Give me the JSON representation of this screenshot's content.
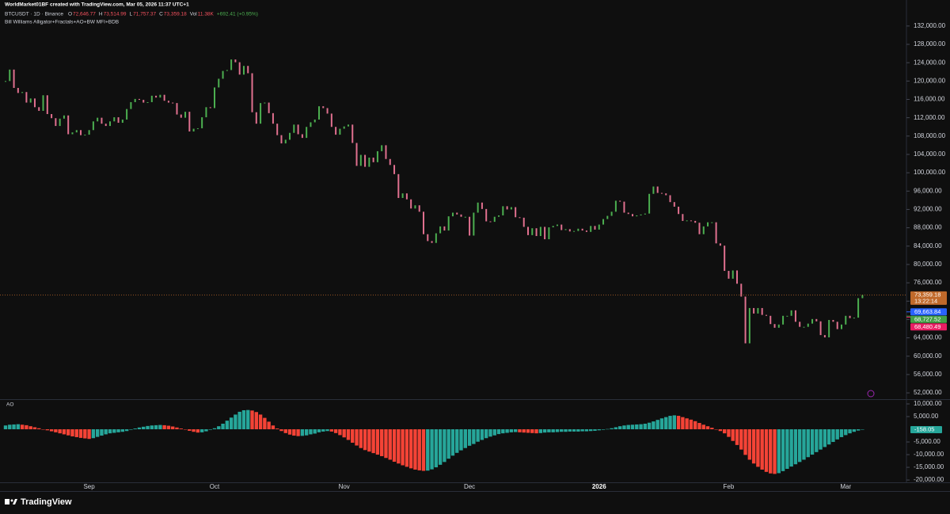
{
  "header": {
    "watermark": "WorldMarket01BF created with TradingView.com, Mar 05, 2026 11:37 UTC+1",
    "symbol": "BTCUSDT · 1D · Binance",
    "legend": [
      {
        "key": "O",
        "text": "72,646.77"
      },
      {
        "key": "H",
        "text": "73,514.99"
      },
      {
        "key": "L",
        "text": "71,757.37"
      },
      {
        "key": "C",
        "text": "73,359.18"
      },
      {
        "key": "Vol",
        "text": "11.38K"
      }
    ],
    "change": "+692.41 (+0.95%)",
    "study": "Bill Williams Alligator+Fractals+AO+BW MFI+BDB"
  },
  "footer": {
    "brand": "TradingView"
  },
  "chart_data": {
    "type": "price-bars",
    "categories": [
      null,
      null,
      null,
      null,
      null,
      null,
      null,
      null,
      null,
      null,
      null,
      null,
      null,
      null,
      null,
      null,
      null,
      null,
      null,
      null,
      "Sep",
      null,
      null,
      null,
      null,
      null,
      null,
      null,
      null,
      null,
      null,
      null,
      null,
      null,
      null,
      null,
      null,
      null,
      null,
      null,
      null,
      null,
      null,
      null,
      null,
      null,
      null,
      null,
      null,
      null,
      "Oct",
      null,
      null,
      null,
      null,
      null,
      null,
      null,
      null,
      null,
      null,
      null,
      null,
      null,
      null,
      null,
      null,
      null,
      null,
      null,
      null,
      null,
      null,
      null,
      null,
      null,
      null,
      null,
      null,
      null,
      null,
      "Nov",
      null,
      null,
      null,
      null,
      null,
      null,
      null,
      null,
      null,
      null,
      null,
      null,
      null,
      null,
      null,
      null,
      null,
      null,
      null,
      null,
      null,
      null,
      null,
      null,
      null,
      null,
      null,
      null,
      null,
      "Dec",
      null,
      null,
      null,
      null,
      null,
      null,
      null,
      null,
      null,
      null,
      null,
      null,
      null,
      null,
      null,
      null,
      null,
      null,
      null,
      null,
      null,
      null,
      null,
      null,
      null,
      null,
      null,
      null,
      null,
      null,
      "2026",
      null,
      null,
      null,
      null,
      null,
      null,
      null,
      null,
      null,
      null,
      null,
      null,
      null,
      null,
      null,
      null,
      null,
      null,
      null,
      null,
      null,
      null,
      null,
      null,
      null,
      null,
      null,
      null,
      null,
      null,
      "Feb",
      null,
      null,
      null,
      null,
      null,
      null,
      null,
      null,
      null,
      null,
      null,
      null,
      null,
      null,
      null,
      null,
      null,
      null,
      null,
      null,
      null,
      null,
      null,
      null,
      null,
      null,
      null,
      "Mar",
      null,
      null,
      null,
      null
    ],
    "values": [
      120000,
      122500,
      118500,
      117400,
      117600,
      115300,
      116200,
      114300,
      113500,
      116900,
      112800,
      111900,
      110200,
      111800,
      112500,
      108400,
      108800,
      109300,
      108200,
      108300,
      109300,
      111200,
      112000,
      110700,
      110200,
      111200,
      112100,
      110900,
      111600,
      113900,
      115400,
      116100,
      115900,
      115300,
      115400,
      116800,
      116400,
      117000,
      115700,
      115300,
      115200,
      112700,
      112000,
      113300,
      109000,
      109600,
      109700,
      112100,
      114300,
      114100,
      118600,
      120500,
      122200,
      122400,
      124700,
      124100,
      121400,
      123300,
      121700,
      113200,
      110700,
      115200,
      115300,
      113000,
      110700,
      108200,
      106400,
      107200,
      108700,
      110500,
      108400,
      107600,
      110000,
      111000,
      111600,
      114500,
      114100,
      112900,
      110000,
      108300,
      109600,
      110100,
      110500,
      106500,
      101500,
      103900,
      101300,
      103300,
      102300,
      104700,
      106000,
      103000,
      101700,
      99700,
      94500,
      95500,
      94200,
      92200,
      92900,
      91500,
      86600,
      85100,
      84700,
      86800,
      88300,
      87400,
      90500,
      91300,
      90900,
      90400,
      90400,
      86300,
      91300,
      93500,
      92100,
      89400,
      89300,
      90400,
      90700,
      92700,
      92000,
      92500,
      90300,
      90200,
      88200,
      86400,
      87900,
      86200,
      88200,
      85500,
      88100,
      88400,
      88700,
      87500,
      87700,
      87200,
      87300,
      87800,
      87400,
      87100,
      88400,
      87600,
      88700,
      89900,
      90600,
      91500,
      93900,
      93700,
      91300,
      91000,
      90500,
      90700,
      90900,
      91100,
      95400,
      97000,
      95600,
      95500,
      95100,
      93600,
      92600,
      91000,
      89500,
      89600,
      89500,
      89100,
      86600,
      88300,
      89200,
      89200,
      84600,
      84100,
      78600,
      76900,
      78700,
      75800,
      73000,
      62800,
      70500,
      69300,
      70500,
      69000,
      68800,
      67000,
      66200,
      66900,
      68800,
      68800,
      70000,
      67500,
      66400,
      66400,
      67100,
      68100,
      67600,
      64600,
      64100,
      67900,
      67500,
      65900,
      66900,
      68800,
      68300,
      68400,
      72650,
      73359.18
    ],
    "up_color": "#4caf50",
    "down_color": "#e0708f",
    "ylim": [
      50800,
      135600
    ],
    "yticks": [
      {
        "value": 52000,
        "label": "52,000.00"
      },
      {
        "value": 56000,
        "label": "56,000.00"
      },
      {
        "value": 60000,
        "label": "60,000.00"
      },
      {
        "value": 64000,
        "label": "64,000.00"
      },
      {
        "value": 68000,
        "label": "68,000.00"
      },
      {
        "value": 72000,
        "label": "72,000.00"
      },
      {
        "value": 76000,
        "label": "76,000.00"
      },
      {
        "value": 80000,
        "label": "80,000.00"
      },
      {
        "value": 84000,
        "label": "84,000.00"
      },
      {
        "value": 88000,
        "label": "88,000.00"
      },
      {
        "value": 92000,
        "label": "92,000.00"
      },
      {
        "value": 96000,
        "label": "96,000.00"
      },
      {
        "value": 100000,
        "label": "100,000.00"
      },
      {
        "value": 104000,
        "label": "104,000.00"
      },
      {
        "value": 108000,
        "label": "108,000.00"
      },
      {
        "value": 112000,
        "label": "112,000.00"
      },
      {
        "value": 116000,
        "label": "116,000.00"
      },
      {
        "value": 120000,
        "label": "120,000.00"
      },
      {
        "value": 124000,
        "label": "124,000.00"
      },
      {
        "value": 128000,
        "label": "128,000.00"
      },
      {
        "value": 132000,
        "label": "132,000.00"
      }
    ],
    "last_price": {
      "value": 73359.18,
      "label": "73,359.18",
      "color": "#c0692a"
    },
    "countdown": "13:22:14",
    "price_tags": [
      {
        "value": 69663.84,
        "label": "69,663.84",
        "color": "#2962ff"
      },
      {
        "value": 68727.52,
        "label": "68,727.52",
        "color": "#43a047"
      },
      {
        "value": 68480.49,
        "label": "68,480.49",
        "color": "#e91e63"
      }
    ],
    "indicator": {
      "type": "histogram",
      "title": "AO",
      "values": [
        1500,
        1800,
        1900,
        2000,
        1800,
        1600,
        1200,
        800,
        400,
        0,
        -400,
        -800,
        -1200,
        -1600,
        -2000,
        -2400,
        -2800,
        -3100,
        -3400,
        -3600,
        -3800,
        -3500,
        -3000,
        -2500,
        -2000,
        -1600,
        -1400,
        -1200,
        -1000,
        -700,
        -200,
        300,
        700,
        1000,
        1300,
        1500,
        1600,
        1700,
        1600,
        1400,
        1100,
        700,
        300,
        -100,
        -600,
        -1000,
        -1300,
        -1200,
        -800,
        -200,
        400,
        1200,
        2200,
        3400,
        4600,
        5800,
        6900,
        7500,
        7600,
        7400,
        6800,
        5800,
        4500,
        3000,
        1500,
        300,
        -700,
        -1500,
        -2100,
        -2500,
        -2700,
        -2600,
        -2400,
        -2000,
        -1700,
        -1200,
        -900,
        -700,
        -900,
        -1500,
        -2300,
        -3200,
        -4200,
        -5300,
        -6400,
        -7400,
        -8200,
        -8800,
        -9400,
        -10000,
        -10600,
        -11300,
        -12000,
        -12800,
        -13500,
        -14200,
        -14800,
        -15400,
        -15900,
        -16200,
        -16400,
        -16300,
        -15800,
        -15000,
        -14000,
        -12900,
        -11600,
        -10400,
        -9300,
        -8300,
        -7400,
        -6500,
        -5800,
        -4900,
        -4200,
        -3500,
        -2900,
        -2400,
        -1900,
        -1600,
        -1400,
        -1200,
        -1100,
        -1200,
        -1300,
        -1400,
        -1500,
        -1600,
        -1500,
        -1300,
        -1200,
        -1200,
        -1100,
        -1000,
        -1000,
        -900,
        -900,
        -900,
        -800,
        -800,
        -700,
        -600,
        -400,
        -200,
        100,
        400,
        800,
        1200,
        1500,
        1700,
        1800,
        1900,
        2000,
        2200,
        2600,
        3100,
        3700,
        4300,
        4800,
        5300,
        5500,
        5300,
        4800,
        4300,
        3800,
        3200,
        2500,
        1800,
        1200,
        600,
        0,
        -700,
        -1600,
        -3000,
        -4600,
        -6200,
        -8000,
        -10100,
        -12000,
        -13500,
        -14800,
        -15900,
        -16800,
        -17400,
        -17600,
        -17300,
        -16500,
        -15600,
        -14700,
        -13800,
        -12900,
        -12000,
        -11000,
        -10000,
        -9000,
        -8000,
        -7000,
        -6000,
        -5000,
        -4000,
        -3100,
        -2300,
        -1600,
        -1000,
        -500,
        -158.05
      ],
      "rise_color": "#26a69a",
      "fall_color": "#f44336",
      "ylim": [
        -20600,
        11560
      ],
      "yticks": [
        {
          "value": 10000,
          "label": "10,000.00"
        },
        {
          "value": 5000,
          "label": "5,000.00"
        },
        {
          "value": -5000,
          "label": "-5,000.00"
        },
        {
          "value": -10000,
          "label": "-10,000.00"
        },
        {
          "value": -15000,
          "label": "-15,000.00"
        },
        {
          "value": -20000,
          "label": "-20,000.00"
        }
      ]
    }
  }
}
